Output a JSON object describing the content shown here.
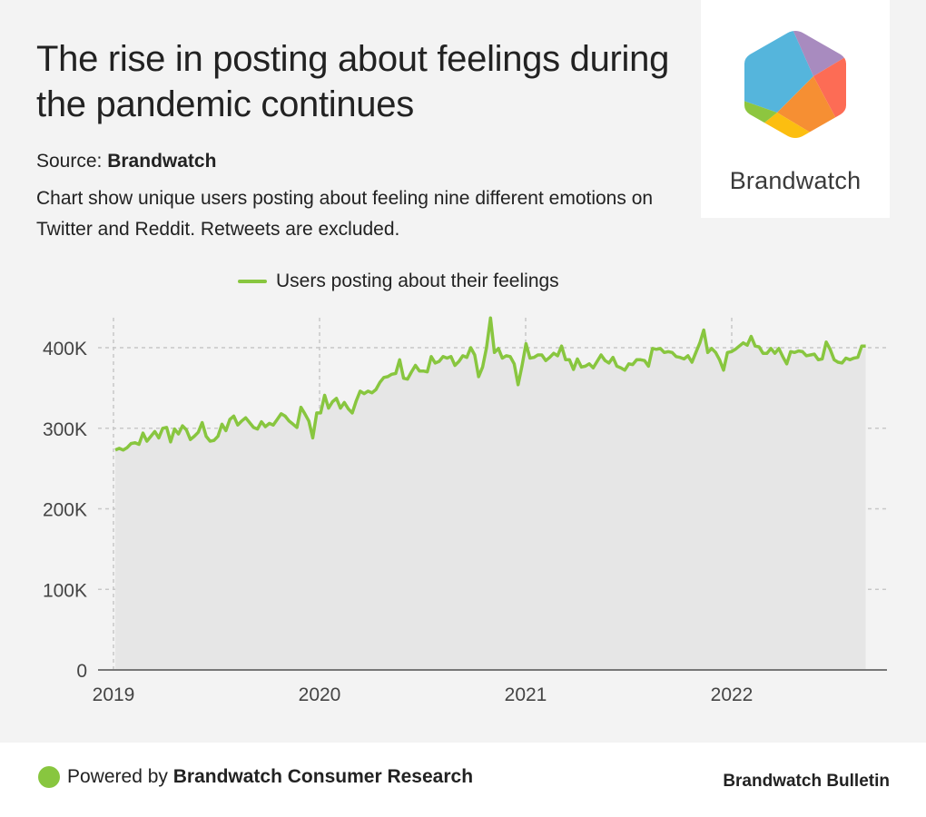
{
  "header": {
    "title": "The rise in posting about feelings during the pandemic continues",
    "source_label": "Source:",
    "source_name": "Brandwatch",
    "description": "Chart show unique users posting about feeling nine different emotions on Twitter and Reddit. Retweets are excluded."
  },
  "logo": {
    "text": "Brandwatch",
    "colors": [
      "#55b5dc",
      "#a88bbf",
      "#fd6c55",
      "#f68f33",
      "#fcbe10",
      "#8dc63f"
    ]
  },
  "footer": {
    "powered_by_prefix": "Powered by",
    "powered_by_name": "Brandwatch Consumer Research",
    "brand_right": "Brandwatch Bulletin",
    "dot_color": "#88c63f"
  },
  "chart_data": {
    "type": "area",
    "title": "The rise in posting about feelings during the pandemic continues",
    "xlabel": "",
    "ylabel": "",
    "x_start": "2019-01-01",
    "x_interval": "weekly",
    "x_ticks": [
      {
        "label": "2019",
        "t": 2019.0
      },
      {
        "label": "2020",
        "t": 2020.0
      },
      {
        "label": "2021",
        "t": 2021.0
      },
      {
        "label": "2022",
        "t": 2022.0
      }
    ],
    "x_range": [
      2019.0,
      2022.75
    ],
    "y_ticks": [
      {
        "label": "0",
        "v": 0
      },
      {
        "label": "100K",
        "v": 100000
      },
      {
        "label": "200K",
        "v": 200000
      },
      {
        "label": "300K",
        "v": 300000
      },
      {
        "label": "400K",
        "v": 400000
      }
    ],
    "ylim": [
      0,
      440000
    ],
    "grid": true,
    "legend_position": "top-center",
    "series": [
      {
        "name": "Users posting about their feelings",
        "color": "#88c63f",
        "fill": "#e6e6e6",
        "values": [
          273000,
          275000,
          273000,
          276000,
          281000,
          282000,
          280000,
          294000,
          284000,
          290000,
          296000,
          288000,
          300000,
          301000,
          283000,
          299000,
          293000,
          303000,
          298000,
          286000,
          290000,
          295000,
          307000,
          290000,
          284000,
          285000,
          290000,
          305000,
          297000,
          311000,
          315000,
          304000,
          309000,
          313000,
          307000,
          301000,
          299000,
          308000,
          302000,
          306000,
          304000,
          311000,
          318000,
          315000,
          309000,
          305000,
          301000,
          326000,
          318000,
          309000,
          288000,
          319000,
          319000,
          341000,
          325000,
          333000,
          337000,
          325000,
          332000,
          324000,
          319000,
          334000,
          346000,
          343000,
          346000,
          344000,
          348000,
          357000,
          363000,
          364000,
          367000,
          368000,
          385000,
          362000,
          361000,
          370000,
          378000,
          371000,
          371000,
          370000,
          389000,
          381000,
          383000,
          389000,
          387000,
          389000,
          378000,
          383000,
          390000,
          388000,
          400000,
          391000,
          364000,
          376000,
          400000,
          437000,
          394000,
          399000,
          387000,
          390000,
          389000,
          380000,
          354000,
          378000,
          405000,
          387000,
          388000,
          391000,
          391000,
          384000,
          388000,
          393000,
          390000,
          402000,
          385000,
          385000,
          373000,
          386000,
          376000,
          377000,
          380000,
          375000,
          383000,
          391000,
          384000,
          381000,
          388000,
          377000,
          375000,
          372000,
          380000,
          379000,
          385000,
          385000,
          384000,
          377000,
          399000,
          398000,
          399000,
          394000,
          395000,
          394000,
          389000,
          388000,
          386000,
          390000,
          382000,
          394000,
          406000,
          422000,
          394000,
          399000,
          394000,
          385000,
          372000,
          394000,
          395000,
          398000,
          402000,
          406000,
          403000,
          414000,
          402000,
          401000,
          393000,
          393000,
          399000,
          393000,
          399000,
          389000,
          380000,
          395000,
          394000,
          396000,
          395000,
          390000,
          391000,
          392000,
          385000,
          386000,
          407000,
          398000,
          385000,
          382000,
          381000,
          387000,
          385000,
          387000,
          388000,
          402000,
          402000
        ]
      }
    ]
  }
}
